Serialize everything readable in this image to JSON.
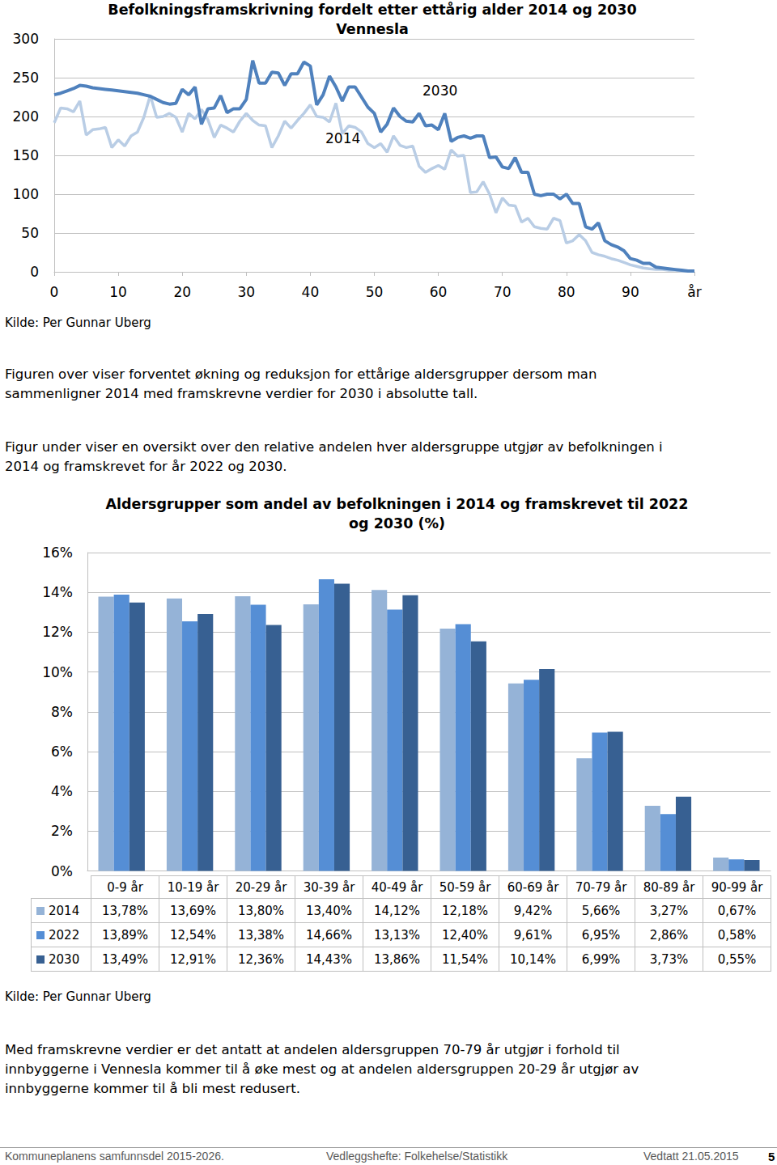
{
  "chart_data": [
    {
      "type": "line",
      "title": "Befolkningsframskrivning fordelt etter ettårig alder 2014 og 2030 Vennesla",
      "x": [
        0,
        1,
        2,
        3,
        4,
        5,
        6,
        7,
        8,
        9,
        10,
        11,
        12,
        13,
        14,
        15,
        16,
        17,
        18,
        19,
        20,
        21,
        22,
        23,
        24,
        25,
        26,
        27,
        28,
        29,
        30,
        31,
        32,
        33,
        34,
        35,
        36,
        37,
        38,
        39,
        40,
        41,
        42,
        43,
        44,
        45,
        46,
        47,
        48,
        49,
        50,
        51,
        52,
        53,
        54,
        55,
        56,
        57,
        58,
        59,
        60,
        61,
        62,
        63,
        64,
        65,
        66,
        67,
        68,
        69,
        70,
        71,
        72,
        73,
        74,
        75,
        76,
        77,
        78,
        79,
        80,
        81,
        82,
        83,
        84,
        85,
        86,
        87,
        88,
        89,
        90,
        91,
        92,
        93,
        94,
        95,
        96,
        97,
        98,
        99,
        100
      ],
      "series": [
        {
          "name": "2014",
          "color": "#b9cde5",
          "values": [
            192,
            211,
            210,
            206,
            220,
            176,
            183,
            184,
            186,
            160,
            170,
            162,
            175,
            180,
            199,
            227,
            199,
            200,
            204,
            199,
            180,
            204,
            197,
            209,
            196,
            173,
            189,
            185,
            180,
            194,
            204,
            195,
            189,
            188,
            160,
            175,
            194,
            185,
            195,
            204,
            215,
            200,
            199,
            193,
            217,
            178,
            188,
            186,
            180,
            165,
            160,
            165,
            154,
            175,
            163,
            160,
            162,
            136,
            128,
            133,
            137,
            132,
            157,
            149,
            150,
            102,
            103,
            116,
            100,
            76,
            95,
            86,
            85,
            64,
            69,
            58,
            56,
            55,
            69,
            66,
            37,
            40,
            48,
            40,
            25,
            22,
            20,
            17,
            15,
            12,
            9,
            7,
            5,
            4,
            3,
            3,
            2,
            2,
            1,
            1,
            1
          ]
        },
        {
          "name": "2030",
          "color": "#4f81bd",
          "values": [
            228,
            230,
            233,
            236,
            240,
            239,
            237,
            236,
            235,
            234,
            233,
            232,
            231,
            230,
            228,
            226,
            222,
            218,
            216,
            217,
            235,
            228,
            238,
            190,
            210,
            211,
            227,
            205,
            210,
            210,
            222,
            272,
            243,
            243,
            257,
            256,
            240,
            255,
            255,
            270,
            265,
            215,
            228,
            252,
            238,
            220,
            238,
            238,
            225,
            212,
            204,
            180,
            190,
            211,
            200,
            194,
            193,
            204,
            188,
            189,
            183,
            204,
            168,
            173,
            175,
            172,
            175,
            175,
            147,
            148,
            135,
            133,
            147,
            128,
            128,
            100,
            98,
            100,
            100,
            94,
            100,
            88,
            88,
            58,
            55,
            63,
            40,
            35,
            32,
            27,
            17,
            15,
            11,
            11,
            6,
            5,
            4,
            3,
            2,
            1,
            1
          ]
        }
      ],
      "xlim": [
        0,
        100
      ],
      "xticks": [
        0,
        10,
        20,
        30,
        40,
        50,
        60,
        70,
        80,
        90,
        {
          "value": 100,
          "label": "år"
        }
      ],
      "ylim": [
        0,
        300
      ],
      "yticks": [
        0,
        50,
        100,
        150,
        200,
        250,
        300
      ],
      "grid": true
    },
    {
      "type": "bar",
      "title": "Aldersgrupper som andel av befolkningen i 2014 og framskrevet til 2022 og 2030 (%)",
      "categories": [
        "0-9 år",
        "10-19 år",
        "20-29 år",
        "30-39 år",
        "40-49 år",
        "50-59 år",
        "60-69 år",
        "70-79 år",
        "80-89 år",
        "90-99 år"
      ],
      "series": [
        {
          "name": "2014",
          "color": "#95b3d7",
          "values": [
            13.78,
            13.69,
            13.8,
            13.4,
            14.12,
            12.18,
            9.42,
            5.66,
            3.27,
            0.67
          ],
          "value_labels": [
            "13,78%",
            "13,69%",
            "13,80%",
            "13,40%",
            "14,12%",
            "12,18%",
            "9,42%",
            "5,66%",
            "3,27%",
            "0,67%"
          ]
        },
        {
          "name": "2022",
          "color": "#558ed5",
          "values": [
            13.89,
            12.54,
            13.38,
            14.66,
            13.13,
            12.4,
            9.61,
            6.95,
            2.86,
            0.58
          ],
          "value_labels": [
            "13,89%",
            "12,54%",
            "13,38%",
            "14,66%",
            "13,13%",
            "12,40%",
            "9,61%",
            "6,95%",
            "2,86%",
            "0,58%"
          ]
        },
        {
          "name": "2030",
          "color": "#376092",
          "values": [
            13.49,
            12.91,
            12.36,
            14.43,
            13.86,
            11.54,
            10.14,
            6.99,
            3.73,
            0.55
          ],
          "value_labels": [
            "13,49%",
            "12,91%",
            "12,36%",
            "14,43%",
            "13,86%",
            "11,54%",
            "10,14%",
            "6,99%",
            "3,73%",
            "0,55%"
          ]
        }
      ],
      "ylim": [
        0,
        16
      ],
      "yticks": [
        {
          "value": 0,
          "label": "0%"
        },
        {
          "value": 2,
          "label": "2%"
        },
        {
          "value": 4,
          "label": "4%"
        },
        {
          "value": 6,
          "label": "6%"
        },
        {
          "value": 8,
          "label": "8%"
        },
        {
          "value": 10,
          "label": "10%"
        },
        {
          "value": 12,
          "label": "12%"
        },
        {
          "value": 14,
          "label": "14%"
        },
        {
          "value": 16,
          "label": "16%"
        }
      ],
      "grid": true
    }
  ],
  "document": {
    "sources": [
      "Kilde: Per Gunnar Uberg",
      "Kilde: Per Gunnar Uberg"
    ],
    "paragraphs": [
      [
        "Figuren over viser forventet økning og reduksjon for ettårige aldersgrupper dersom man",
        "sammenligner 2014 med framskrevne verdier for 2030 i absolutte tall."
      ],
      [
        "Figur under viser en oversikt over den relative andelen hver aldersgruppe utgjør av befolkningen i",
        "2014 og framskrevet for år 2022 og 2030."
      ],
      [
        "Med framskrevne verdier er det antatt at andelen aldersgruppen 70-79 år utgjør i forhold til",
        "innbyggerne i Vennesla kommer til å øke mest og at andelen aldersgruppen 20-29 år utgjør av",
        "innbyggerne kommer til å bli mest redusert."
      ]
    ],
    "footer": {
      "left": "Kommuneplanens samfunnsdel 2015-2026.",
      "center": "Vedleggshefte: Folkehelse/Statistikk",
      "right": "Vedtatt 21.05.2015",
      "page": "5"
    }
  }
}
